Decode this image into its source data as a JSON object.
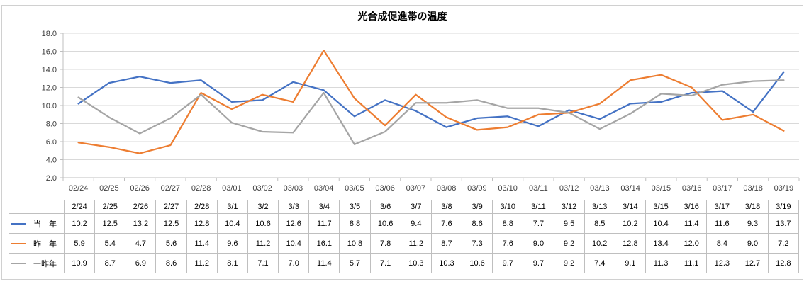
{
  "chart_title": "光合成促進帯の温度",
  "chart_data": {
    "type": "line",
    "title": "光合成促進帯の温度",
    "categories": [
      "2/24",
      "2/25",
      "2/26",
      "2/27",
      "2/28",
      "3/1",
      "3/2",
      "3/3",
      "3/4",
      "3/5",
      "3/6",
      "3/7",
      "3/8",
      "3/9",
      "3/10",
      "3/11",
      "3/12",
      "3/13",
      "3/14",
      "3/15",
      "3/16",
      "3/17",
      "3/18",
      "3/19"
    ],
    "x_axis_tick_labels": [
      "02/24",
      "02/25",
      "02/26",
      "02/27",
      "02/28",
      "03/01",
      "03/02",
      "03/03",
      "03/04",
      "03/05",
      "03/06",
      "03/07",
      "03/08",
      "03/09",
      "03/10",
      "03/11",
      "03/12",
      "03/13",
      "03/14",
      "03/15",
      "03/16",
      "03/17",
      "03/18",
      "03/19"
    ],
    "y_axis_tick_labels": [
      "2.0",
      "4.0",
      "6.0",
      "8.0",
      "10.0",
      "12.0",
      "14.0",
      "16.0",
      "18.0"
    ],
    "ylim": [
      2.0,
      18.0
    ],
    "y_tick_step": 2.0,
    "grid": true,
    "legend_position": "data-table-row-headers-left",
    "series": [
      {
        "name": "当　年",
        "color": "#4472C4",
        "values": [
          10.2,
          12.5,
          13.2,
          12.5,
          12.8,
          10.4,
          10.6,
          12.6,
          11.7,
          8.8,
          10.6,
          9.4,
          7.6,
          8.6,
          8.8,
          7.7,
          9.5,
          8.5,
          10.2,
          10.4,
          11.4,
          11.6,
          9.3,
          13.7
        ]
      },
      {
        "name": "昨　年",
        "color": "#ED7D31",
        "values": [
          5.9,
          5.4,
          4.7,
          5.6,
          11.4,
          9.6,
          11.2,
          10.4,
          16.1,
          10.8,
          7.8,
          11.2,
          8.7,
          7.3,
          7.6,
          9.0,
          9.2,
          10.2,
          12.8,
          13.4,
          12.0,
          8.4,
          9.0,
          7.2
        ]
      },
      {
        "name": "一昨年",
        "color": "#A5A5A5",
        "values": [
          10.9,
          8.7,
          6.9,
          8.6,
          11.2,
          8.1,
          7.1,
          7.0,
          11.4,
          5.7,
          7.1,
          10.3,
          10.3,
          10.6,
          9.7,
          9.7,
          9.2,
          7.4,
          9.1,
          11.3,
          11.1,
          12.3,
          12.7,
          12.8
        ]
      }
    ]
  },
  "colors": {
    "gridline": "#D9D9D9",
    "axis_line": "#BFBFBF",
    "tick": "#BFBFBF",
    "axis_text": "#404040",
    "table_border": "#BFBFBF",
    "frame_border": "#D0D0D0"
  }
}
